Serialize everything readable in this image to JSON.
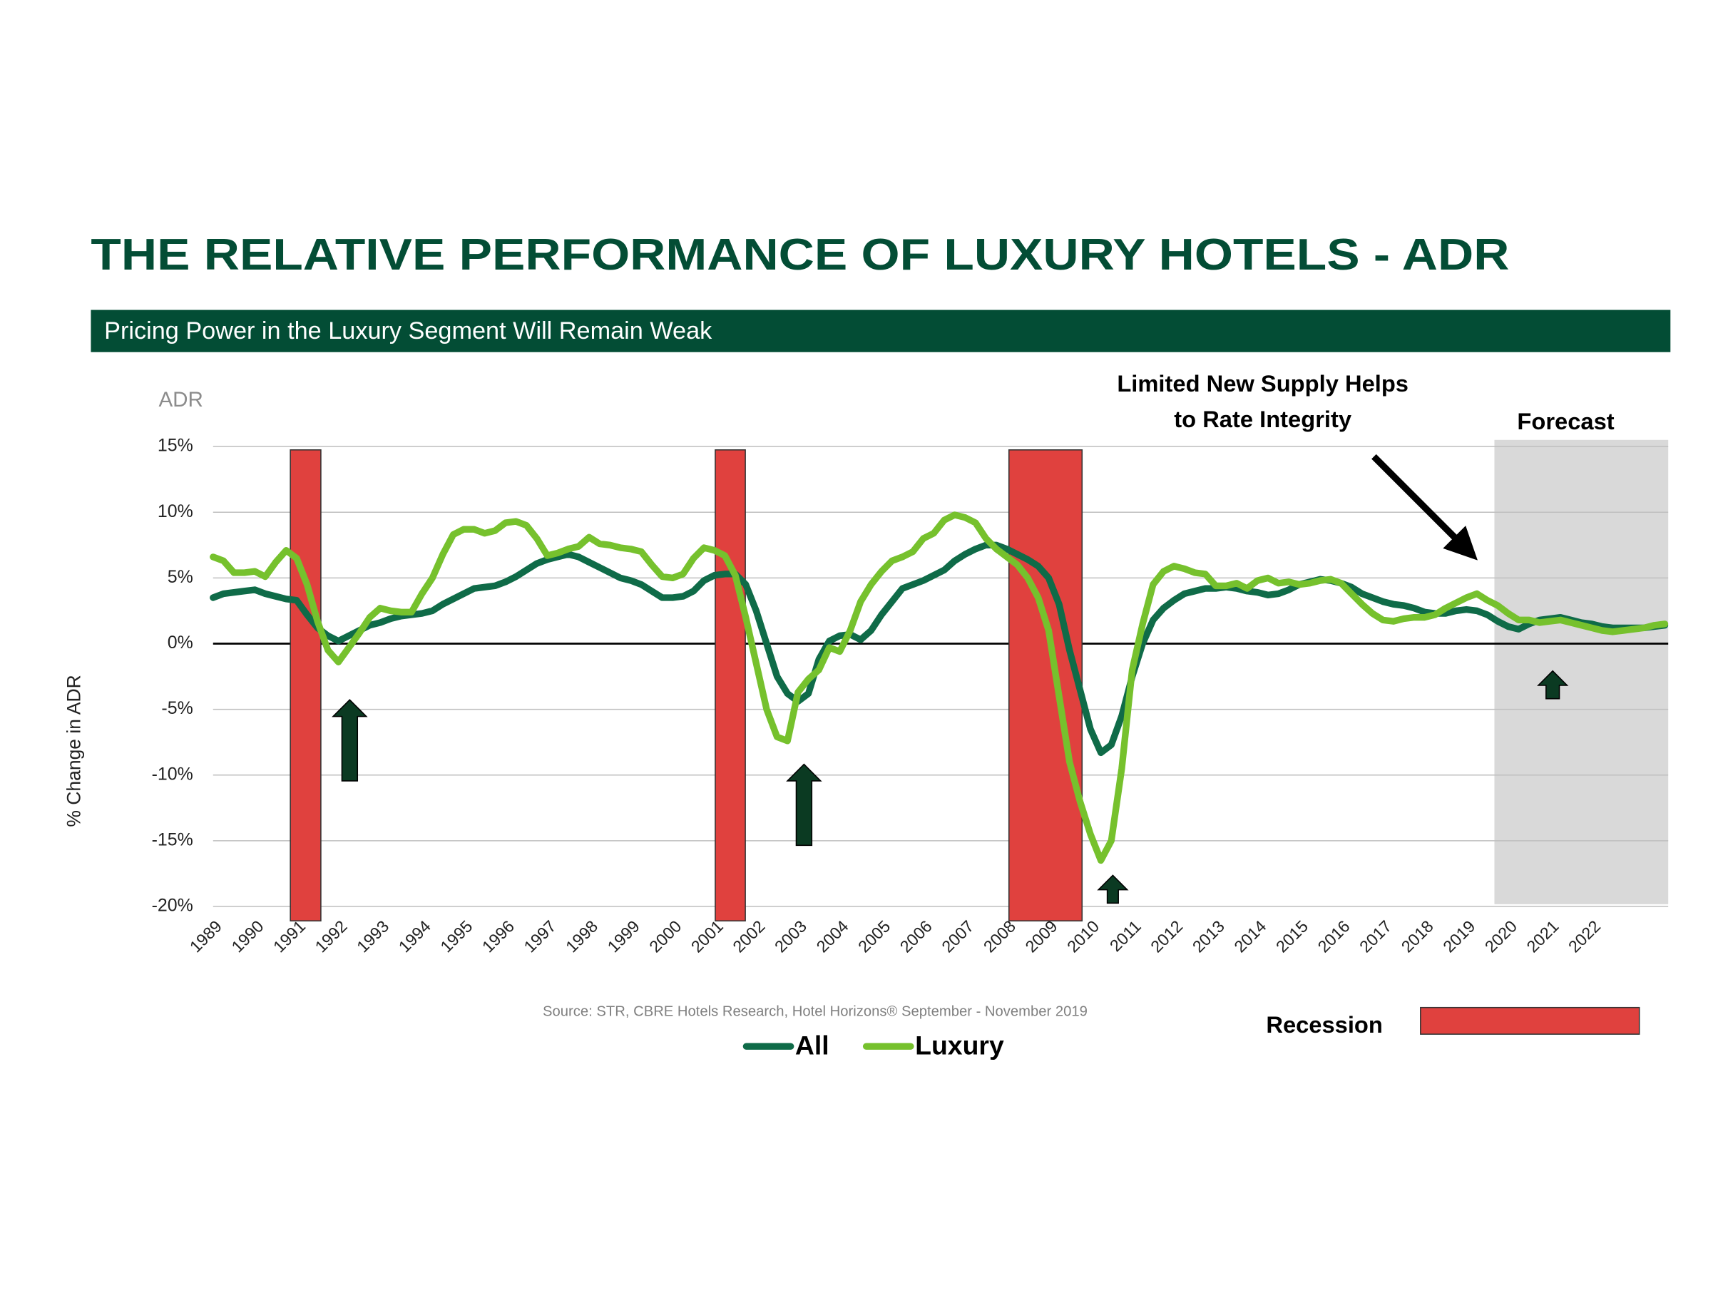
{
  "chart_data": {
    "type": "line",
    "title": "THE RELATIVE PERFORMANCE OF LUXURY HOTELS -  ADR",
    "subtitle": "Pricing Power in the Luxury Segment Will Remain Weak",
    "y_unit_label": "ADR",
    "y_label": "% Change in ADR",
    "source": "Source: STR, CBRE Hotels Research, Hotel Horizons® September - November 2019",
    "annotation": [
      "Limited New Supply Helps",
      "to Rate Integrity"
    ],
    "forecast": {
      "label": "Forecast",
      "start": 2019.67
    },
    "recession": {
      "label": "Recession",
      "color": "#e0413e",
      "periods": [
        [
          1990.85,
          1991.58
        ],
        [
          2001.02,
          2001.74
        ],
        [
          2008.05,
          2009.8
        ]
      ]
    },
    "xlim": [
      1989,
      2023.83
    ],
    "xticks": [
      1989,
      1990,
      1991,
      1992,
      1993,
      1994,
      1995,
      1996,
      1997,
      1998,
      1999,
      2000,
      2001,
      2002,
      2003,
      2004,
      2005,
      2006,
      2007,
      2008,
      2009,
      2010,
      2011,
      2012,
      2013,
      2014,
      2015,
      2016,
      2017,
      2018,
      2019,
      2020,
      2021,
      2022
    ],
    "ylim": [
      -20,
      15
    ],
    "yticks": [
      {
        "value": 15,
        "label": "15%"
      },
      {
        "value": 10,
        "label": "10%"
      },
      {
        "value": 5,
        "label": "5%"
      },
      {
        "value": 0,
        "label": "0%"
      },
      {
        "value": -5,
        "label": "-5%"
      },
      {
        "value": -10,
        "label": "-10%"
      },
      {
        "value": -15,
        "label": "-15%"
      },
      {
        "value": -20,
        "label": "-20%"
      }
    ],
    "grid": true,
    "x": [
      1989,
      1989.25,
      1989.5,
      1989.75,
      1990,
      1990.25,
      1990.5,
      1990.75,
      1991,
      1991.25,
      1991.5,
      1991.75,
      1992,
      1992.25,
      1992.5,
      1992.75,
      1993,
      1993.25,
      1993.5,
      1993.75,
      1994,
      1994.25,
      1994.5,
      1994.75,
      1995,
      1995.25,
      1995.5,
      1995.75,
      1996,
      1996.25,
      1996.5,
      1996.75,
      1997,
      1997.25,
      1997.5,
      1997.75,
      1998,
      1998.25,
      1998.5,
      1998.75,
      1999,
      1999.25,
      1999.5,
      1999.75,
      2000,
      2000.25,
      2000.5,
      2000.75,
      2001,
      2001.25,
      2001.5,
      2001.75,
      2002,
      2002.25,
      2002.5,
      2002.75,
      2003,
      2003.25,
      2003.5,
      2003.75,
      2004,
      2004.25,
      2004.5,
      2004.75,
      2005,
      2005.25,
      2005.5,
      2005.75,
      2006,
      2006.25,
      2006.5,
      2006.75,
      2007,
      2007.25,
      2007.5,
      2007.75,
      2008,
      2008.25,
      2008.5,
      2008.75,
      2009,
      2009.25,
      2009.5,
      2009.75,
      2010,
      2010.25,
      2010.5,
      2010.75,
      2011,
      2011.25,
      2011.5,
      2011.75,
      2012,
      2012.25,
      2012.5,
      2012.75,
      2013,
      2013.25,
      2013.5,
      2013.75,
      2014,
      2014.25,
      2014.5,
      2014.75,
      2015,
      2015.25,
      2015.5,
      2015.75,
      2016,
      2016.25,
      2016.5,
      2016.75,
      2017,
      2017.25,
      2017.5,
      2017.75,
      2018,
      2018.25,
      2018.5,
      2018.75,
      2019,
      2019.25,
      2019.5,
      2019.75,
      2020,
      2020.25,
      2020.5,
      2020.75,
      2021,
      2021.25,
      2021.5,
      2021.75,
      2022,
      2022.25,
      2022.5,
      2022.75,
      2023,
      2023.25,
      2023.5,
      2023.75
    ],
    "series": [
      {
        "name": "All",
        "color": "#0f6b48",
        "values": [
          3.5,
          3.8,
          3.9,
          4.0,
          4.1,
          3.8,
          3.6,
          3.4,
          3.3,
          2.2,
          1.2,
          0.6,
          0.2,
          0.6,
          1.0,
          1.4,
          1.6,
          1.9,
          2.1,
          2.2,
          2.3,
          2.5,
          3.0,
          3.4,
          3.8,
          4.2,
          4.3,
          4.4,
          4.7,
          5.1,
          5.6,
          6.1,
          6.4,
          6.6,
          6.8,
          6.6,
          6.2,
          5.8,
          5.4,
          5.0,
          4.8,
          4.5,
          4.0,
          3.5,
          3.5,
          3.6,
          4.0,
          4.8,
          5.2,
          5.3,
          5.3,
          4.5,
          2.5,
          0,
          -2.5,
          -3.8,
          -4.4,
          -3.8,
          -1.2,
          0.2,
          0.6,
          0.7,
          0.3,
          1.0,
          2.2,
          3.2,
          4.2,
          4.5,
          4.8,
          5.2,
          5.6,
          6.3,
          6.8,
          7.2,
          7.5,
          7.5,
          7.2,
          6.8,
          6.4,
          5.9,
          5.0,
          3.0,
          -0.5,
          -3.5,
          -6.5,
          -8.3,
          -7.7,
          -5.5,
          -2.5,
          0,
          1.8,
          2.7,
          3.3,
          3.8,
          4.0,
          4.2,
          4.2,
          4.3,
          4.2,
          4.0,
          3.9,
          3.7,
          3.8,
          4.1,
          4.5,
          4.7,
          4.9,
          4.8,
          4.6,
          4.3,
          3.8,
          3.5,
          3.2,
          3.0,
          2.9,
          2.7,
          2.4,
          2.3,
          2.3,
          2.5,
          2.6,
          2.5,
          2.2,
          1.7,
          1.3,
          1.1,
          1.5,
          1.8,
          1.9,
          2.0,
          1.8,
          1.6,
          1.5,
          1.3,
          1.2,
          1.2,
          1.2,
          1.2,
          1.3,
          1.4
        ]
      },
      {
        "name": "Luxury",
        "color": "#76c12d",
        "values": [
          6.6,
          6.3,
          5.4,
          5.4,
          5.5,
          5.1,
          6.2,
          7.1,
          6.5,
          4.5,
          1.7,
          -0.5,
          -1.4,
          -0.3,
          0.8,
          2.0,
          2.7,
          2.5,
          2.4,
          2.4,
          3.8,
          5.0,
          6.8,
          8.3,
          8.7,
          8.7,
          8.4,
          8.6,
          9.2,
          9.3,
          9.0,
          8.0,
          6.7,
          6.9,
          7.2,
          7.4,
          8.1,
          7.6,
          7.5,
          7.3,
          7.2,
          7.0,
          6.0,
          5.1,
          5.0,
          5.3,
          6.5,
          7.3,
          7.1,
          6.7,
          5.2,
          2.0,
          -1.5,
          -5.0,
          -7.1,
          -7.4,
          -3.7,
          -2.7,
          -2.0,
          -0.3,
          -0.6,
          1.0,
          3.2,
          4.5,
          5.5,
          6.3,
          6.6,
          7.0,
          8.0,
          8.4,
          9.4,
          9.8,
          9.6,
          9.2,
          8.0,
          7.2,
          6.6,
          6.0,
          5.0,
          3.5,
          1.0,
          -4.0,
          -9.0,
          -12.0,
          -14.5,
          -16.5,
          -15.0,
          -9.5,
          -2.0,
          1.5,
          4.5,
          5.5,
          5.9,
          5.7,
          5.4,
          5.3,
          4.4,
          4.4,
          4.6,
          4.2,
          4.8,
          5.0,
          4.6,
          4.7,
          4.5,
          4.6,
          4.8,
          4.9,
          4.6,
          3.8,
          3.0,
          2.3,
          1.8,
          1.7,
          1.9,
          2.0,
          2.0,
          2.2,
          2.7,
          3.1,
          3.5,
          3.8,
          3.3,
          2.9,
          2.3,
          1.8,
          1.8,
          1.6,
          1.7,
          1.8,
          1.6,
          1.4,
          1.2,
          1.0,
          0.9,
          1.0,
          1.1,
          1.2,
          1.4,
          1.5
        ]
      }
    ]
  }
}
